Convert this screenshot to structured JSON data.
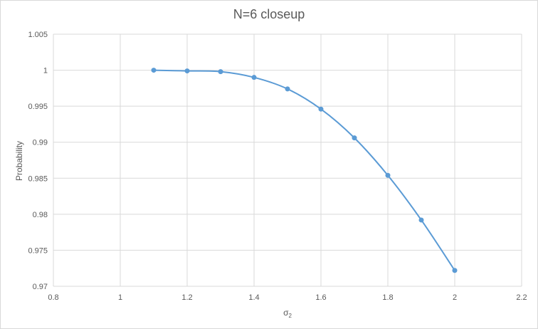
{
  "chart_data": {
    "type": "scatter",
    "title": "N=6 closeup",
    "xlabel": "σ",
    "xlabel_subscript": "2",
    "ylabel": "Probability",
    "xlim": [
      0.8,
      2.2
    ],
    "ylim": [
      0.97,
      1.005
    ],
    "x_ticks": [
      "0.8",
      "1",
      "1.2",
      "1.4",
      "1.6",
      "1.8",
      "2",
      "2.2"
    ],
    "y_ticks": [
      "0.97",
      "0.975",
      "0.98",
      "0.985",
      "0.99",
      "0.995",
      "1",
      "1.005"
    ],
    "grid": true,
    "legend": "none",
    "smooth_line": true,
    "series": [
      {
        "color": "#5b9bd5",
        "x": [
          1.1,
          1.2,
          1.3,
          1.4,
          1.5,
          1.6,
          1.7,
          1.8,
          1.9,
          2.0
        ],
        "y": [
          1.0,
          0.9999,
          0.9998,
          0.999,
          0.9974,
          0.9946,
          0.9906,
          0.9854,
          0.9792,
          0.9722
        ]
      }
    ]
  }
}
